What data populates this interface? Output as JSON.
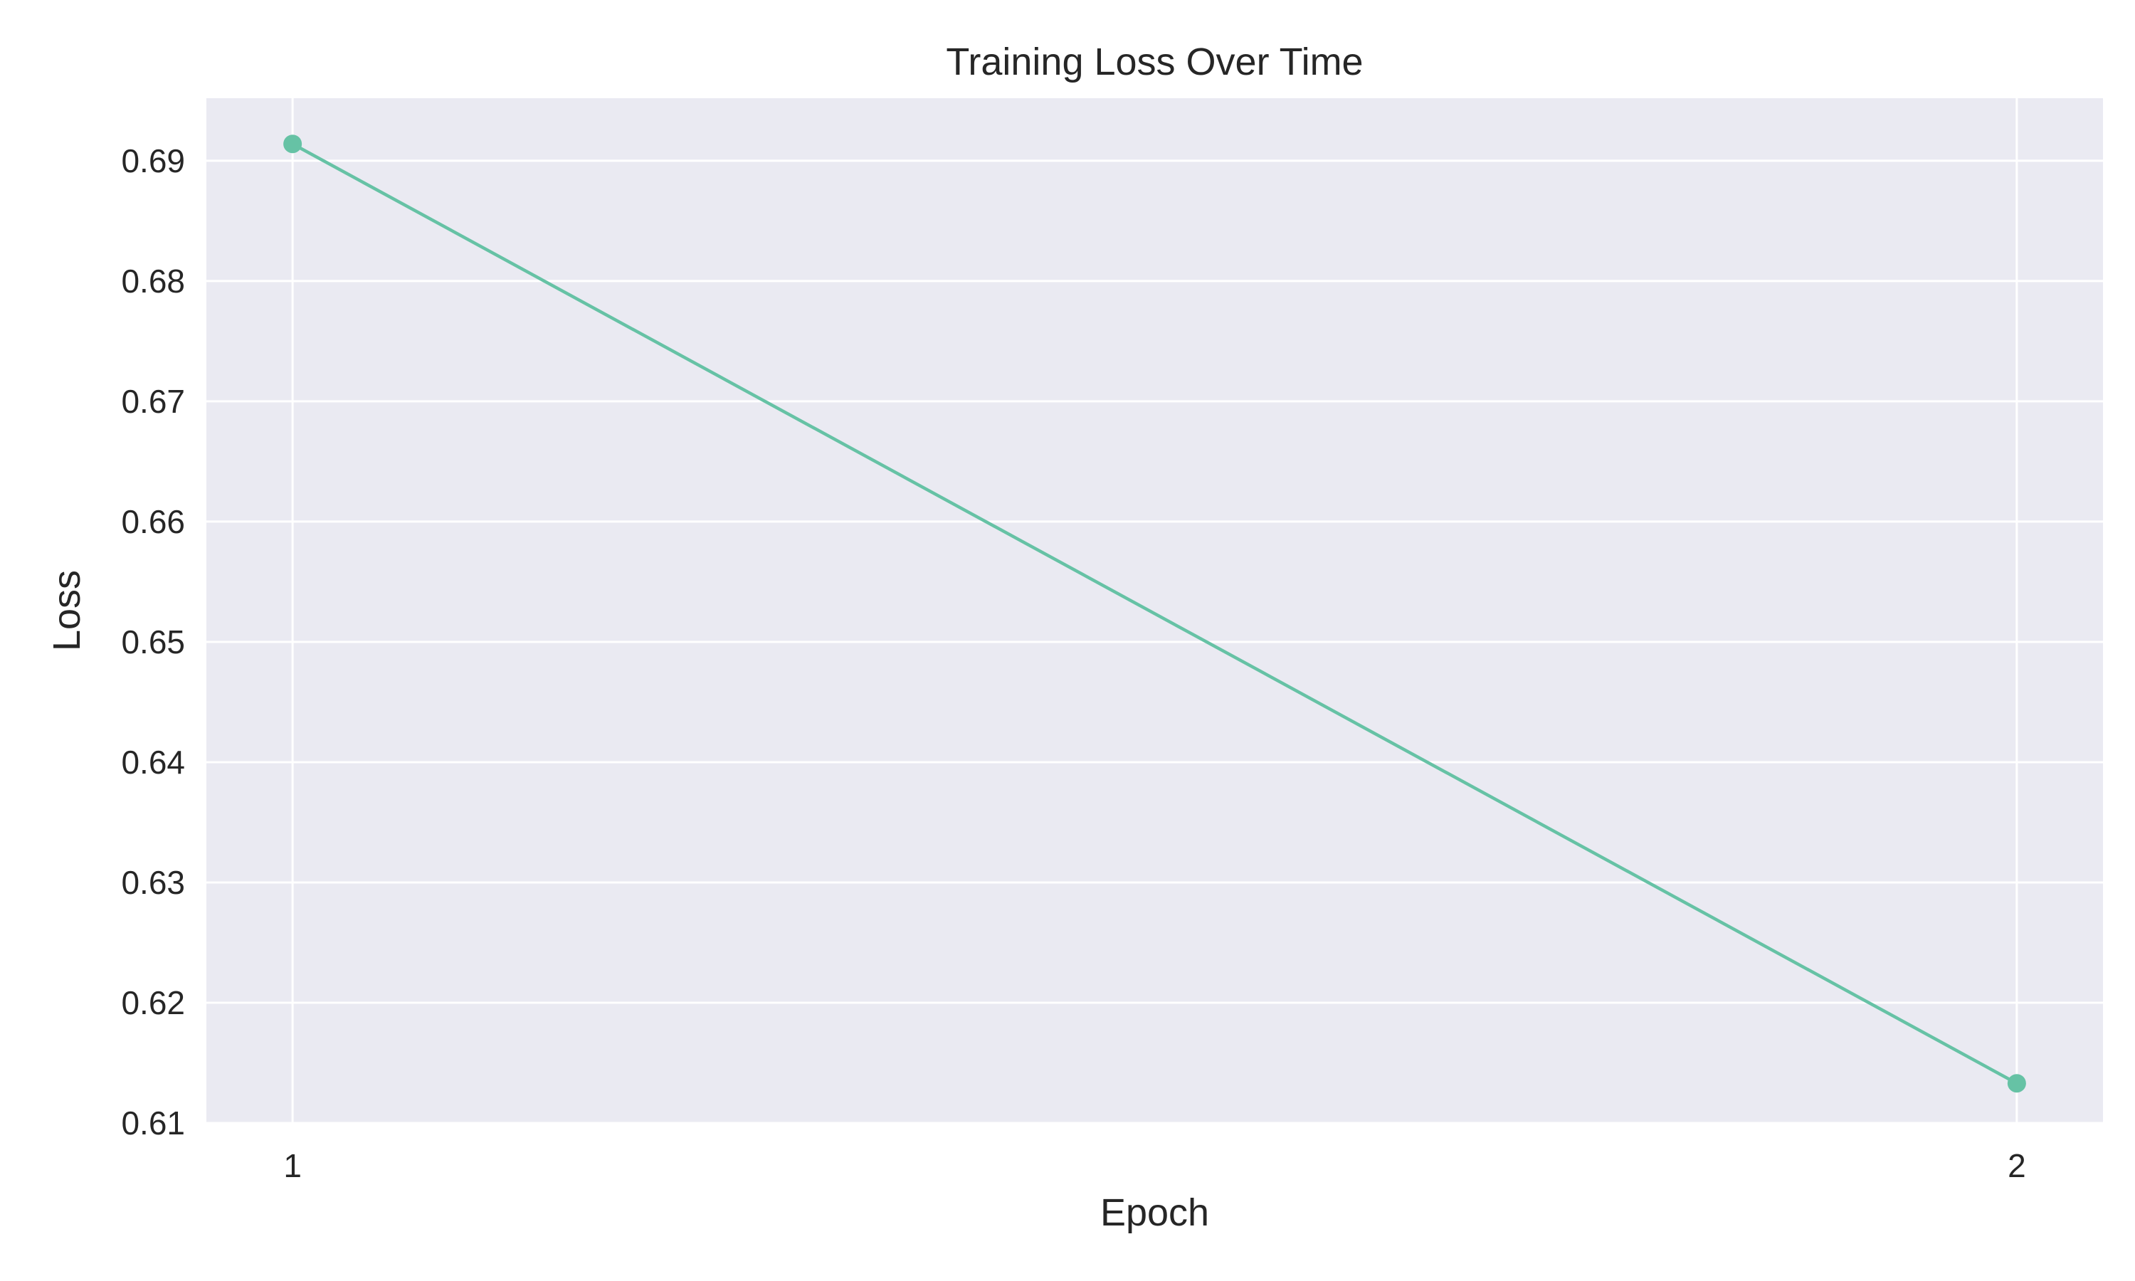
{
  "chart_data": {
    "type": "line",
    "title": "Training Loss Over Time",
    "xlabel": "Epoch",
    "ylabel": "Loss",
    "x": [
      1,
      2
    ],
    "series": [
      {
        "values": [
          0.6914,
          0.6133
        ],
        "color": "#66c2a5"
      }
    ],
    "xticks": [
      "1",
      "2"
    ],
    "yticks": [
      "0.61",
      "0.62",
      "0.63",
      "0.64",
      "0.65",
      "0.66",
      "0.67",
      "0.68",
      "0.69"
    ],
    "xlim": [
      0.95,
      2.05
    ],
    "ylim": [
      0.61,
      0.6952
    ],
    "grid": true,
    "style": {
      "plot_background": "#eaeaf2",
      "grid_color": "#ffffff",
      "text_color": "#262626"
    }
  }
}
